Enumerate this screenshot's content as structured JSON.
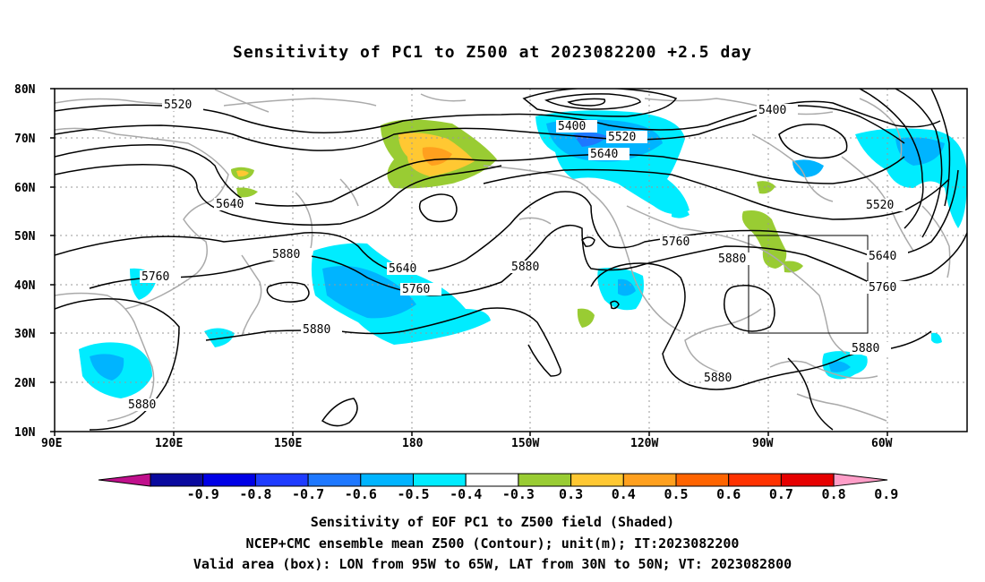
{
  "title": "Sensitivity of PC1 to Z500 at 2023082200 +2.5 day",
  "lat_labels": [
    "80N",
    "70N",
    "60N",
    "50N",
    "40N",
    "30N",
    "20N",
    "10N"
  ],
  "lon_labels": [
    "90E",
    "120E",
    "150E",
    "180",
    "150W",
    "120W",
    "90W",
    "60W"
  ],
  "contour_labels": {
    "c5520a": "5520",
    "c5400a": "5400",
    "c5520b": "5520",
    "c5640a": "5640",
    "c5400b": "5400",
    "c5520c": "5520",
    "c5640b": "5640",
    "c5880a": "5880",
    "c5760a": "5760",
    "c5640c": "5640",
    "c5760b": "5760",
    "c5880b": "5880",
    "c5760c": "5760",
    "c5880c": "5880",
    "c5640d": "5640",
    "c5760d": "5760",
    "c5880d": "5880",
    "c5880e": "5880",
    "c5880f": "5880"
  },
  "colorbar": {
    "labels": [
      "-0.9",
      "-0.8",
      "-0.7",
      "-0.6",
      "-0.5",
      "-0.4",
      "-0.3",
      "0.3",
      "0.4",
      "0.5",
      "0.6",
      "0.7",
      "0.8",
      "0.9"
    ],
    "colors": [
      "#0a0a9e",
      "#0000e6",
      "#1f3cff",
      "#1e78ff",
      "#00b4ff",
      "#00ecff",
      "#ffffff",
      "#99cc33",
      "#ffc832",
      "#ffa01e",
      "#ff6400",
      "#ff3200",
      "#e60000"
    ],
    "low_arrow_color": "#c0108c",
    "high_arrow_color": "#ff9ec8"
  },
  "footer": {
    "line1": "Sensitivity of EOF PC1 to Z500 field (Shaded)",
    "line2": "NCEP+CMC ensemble mean Z500 (Contour); unit(m); IT:2023082200",
    "line3": "Valid area (box): LON from 95W to 65W, LAT from 30N to 50N; VT: 2023082800"
  }
}
